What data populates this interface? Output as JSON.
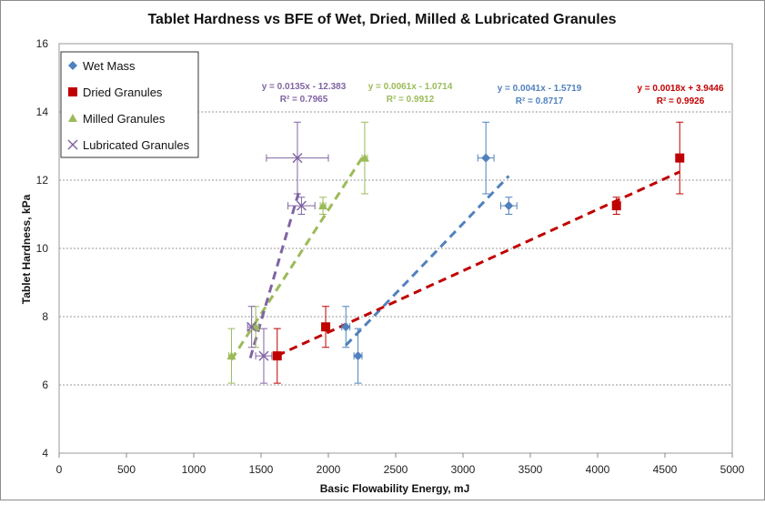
{
  "chart_data": {
    "type": "scatter",
    "title": "Tablet Hardness vs BFE of Wet, Dried, Milled & Lubricated Granules",
    "xlabel": "Basic Flowability Energy, mJ",
    "ylabel": "Tablet Hardness, kPa",
    "xlim": [
      0,
      5000
    ],
    "ylim": [
      4,
      16
    ],
    "x_ticks": [
      "0",
      "500",
      "1000",
      "1500",
      "2000",
      "2500",
      "3000",
      "3500",
      "4000",
      "4500",
      "5000"
    ],
    "y_ticks": [
      "4",
      "6",
      "8",
      "10",
      "12",
      "14",
      "16"
    ],
    "grid": "horizontal dotted",
    "legend_position": "top-left",
    "series": [
      {
        "name": "Wet Mass",
        "color": "#4F81BD",
        "marker": "diamond",
        "points": [
          {
            "x": 2220,
            "y": 6.85,
            "xerr": 30,
            "yerr_lo": 0.8,
            "yerr_hi": 0.8
          },
          {
            "x": 2130,
            "y": 7.7,
            "xerr": 30,
            "yerr_lo": 0.6,
            "yerr_hi": 0.6
          },
          {
            "x": 3340,
            "y": 11.25,
            "xerr": 60,
            "yerr_lo": 0.25,
            "yerr_hi": 0.25
          },
          {
            "x": 3170,
            "y": 12.65,
            "xerr": 60,
            "yerr_lo": 1.05,
            "yerr_hi": 1.05
          }
        ],
        "trend": {
          "equation": "y = 0.0041x - 1.5719",
          "r2": "R² = 0.8717",
          "x_start": 2130,
          "x_end": 3340
        }
      },
      {
        "name": "Dried Granules",
        "color": "#C00000",
        "marker": "square",
        "points": [
          {
            "x": 1620,
            "y": 6.85,
            "xerr": 20,
            "yerr_lo": 0.8,
            "yerr_hi": 0.8
          },
          {
            "x": 1980,
            "y": 7.7,
            "xerr": 20,
            "yerr_lo": 0.6,
            "yerr_hi": 0.6
          },
          {
            "x": 4140,
            "y": 11.25,
            "xerr": 20,
            "yerr_lo": 0.25,
            "yerr_hi": 0.25
          },
          {
            "x": 4610,
            "y": 12.65,
            "xerr": 20,
            "yerr_lo": 1.05,
            "yerr_hi": 1.05
          }
        ],
        "trend": {
          "equation": "y = 0.0018x + 3.9446",
          "r2": "R² = 0.9926",
          "x_start": 1620,
          "x_end": 4610
        }
      },
      {
        "name": "Milled Granules",
        "color": "#9BBB59",
        "marker": "triangle",
        "points": [
          {
            "x": 1280,
            "y": 6.85,
            "xerr": 20,
            "yerr_lo": 0.8,
            "yerr_hi": 0.8
          },
          {
            "x": 1460,
            "y": 7.7,
            "xerr": 20,
            "yerr_lo": 0.6,
            "yerr_hi": 0.6
          },
          {
            "x": 1960,
            "y": 11.25,
            "xerr": 20,
            "yerr_lo": 0.25,
            "yerr_hi": 0.25
          },
          {
            "x": 2270,
            "y": 12.65,
            "xerr": 20,
            "yerr_lo": 1.05,
            "yerr_hi": 1.05
          }
        ],
        "trend": {
          "equation": "y = 0.0061x - 1.0714",
          "r2": "R² = 0.9912",
          "x_start": 1280,
          "x_end": 2270
        }
      },
      {
        "name": "Lubricated Granules",
        "color": "#8064A2",
        "marker": "x",
        "points": [
          {
            "x": 1520,
            "y": 6.85,
            "xerr": 60,
            "yerr_lo": 0.8,
            "yerr_hi": 0.8
          },
          {
            "x": 1430,
            "y": 7.7,
            "xerr": 30,
            "yerr_lo": 0.6,
            "yerr_hi": 0.6
          },
          {
            "x": 1800,
            "y": 11.25,
            "xerr": 100,
            "yerr_lo": 0.25,
            "yerr_hi": 0.25
          },
          {
            "x": 1770,
            "y": 12.65,
            "xerr": 230,
            "yerr_lo": 1.05,
            "yerr_hi": 1.05
          }
        ],
        "trend": {
          "equation": "y = 0.0135x - 12.383",
          "r2": "R² = 0.7965",
          "x_start": 1420,
          "x_end": 1780
        }
      }
    ]
  }
}
